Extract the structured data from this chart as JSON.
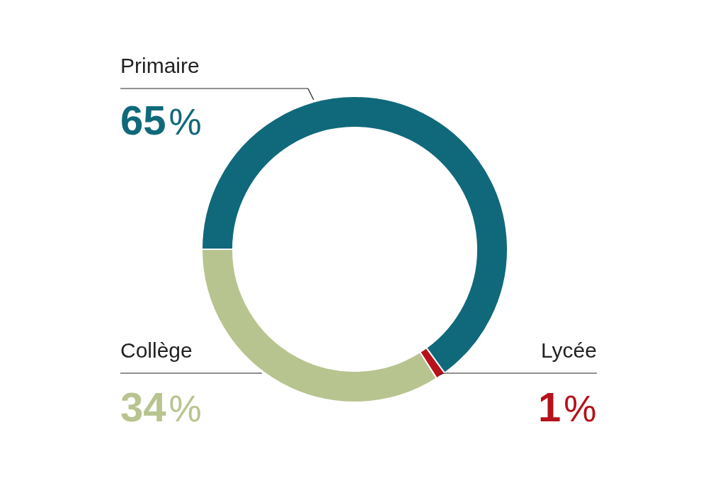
{
  "chart_data": {
    "type": "donut",
    "categories": [
      "Primaire",
      "Lycée",
      "Collège"
    ],
    "values": [
      65,
      1,
      34
    ],
    "colors": [
      "#10697a",
      "#b5121b",
      "#b8c48f"
    ],
    "value_labels": [
      "65%",
      "1%",
      "34%"
    ]
  }
}
